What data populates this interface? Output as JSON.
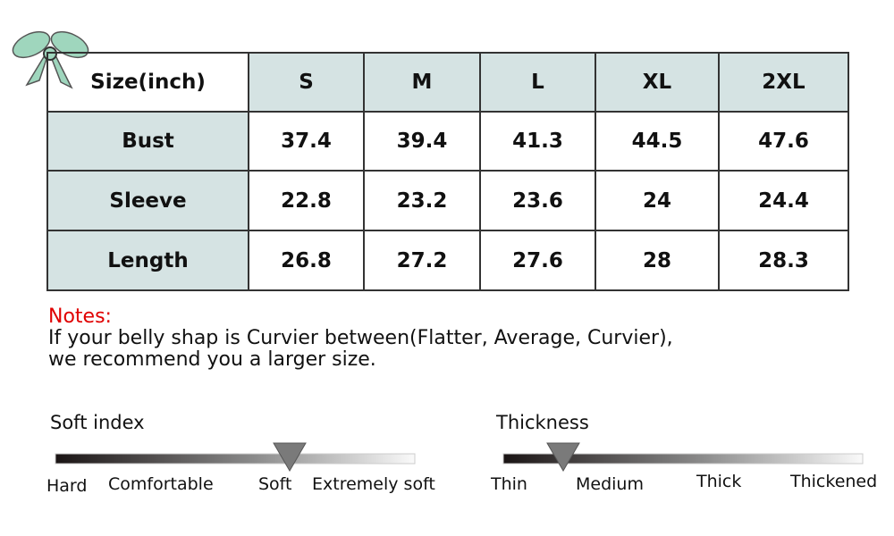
{
  "table": {
    "header": [
      "Size(inch)",
      "S",
      "M",
      "L",
      "XL",
      "2XL"
    ],
    "rows": [
      [
        "Bust",
        "37.4",
        "39.4",
        "41.3",
        "44.5",
        "47.6"
      ],
      [
        "Sleeve",
        "22.8",
        "23.2",
        "23.6",
        "24",
        "24.4"
      ],
      [
        "Length",
        "26.8",
        "27.2",
        "27.6",
        "28",
        "28.3"
      ]
    ]
  },
  "notes": {
    "title": "Notes:",
    "lines": [
      "If your belly shap is Curvier between(Flatter, Average, Curvier),",
      "we recommend you a larger size."
    ]
  },
  "scales": [
    {
      "title": "Soft index",
      "labels": [
        "Hard",
        "Comfortable",
        "Soft",
        "Extremely soft"
      ]
    },
    {
      "title": "Thickness",
      "labels": [
        "Thin",
        "Medium",
        "Thick",
        "Thickened"
      ]
    }
  ]
}
